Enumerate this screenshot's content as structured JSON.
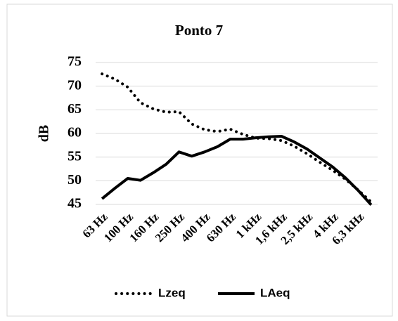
{
  "chart_data": {
    "type": "line",
    "title": "Ponto 7",
    "y_label": "dB",
    "categories": [
      "63 Hz",
      null,
      "100 Hz",
      null,
      "160 Hz",
      null,
      "250 Hz",
      null,
      "400 Hz",
      null,
      "630 Hz",
      null,
      "1 kHz",
      null,
      "1,6 kHz",
      null,
      "2,5 kHz",
      null,
      "4 kHz",
      null,
      "6,3 kHz",
      null
    ],
    "series": [
      {
        "name": "Lzeq",
        "color": "#000000",
        "line_style": "dotted",
        "values": [
          72.6,
          71.5,
          69.8,
          66.5,
          65.2,
          64.5,
          64.6,
          62.0,
          60.8,
          60.4,
          60.9,
          59.8,
          59.0,
          58.9,
          58.5,
          57.3,
          55.7,
          53.9,
          52.2,
          50.3,
          48.0,
          45.5
        ]
      },
      {
        "name": "LAeq",
        "color": "#000000",
        "line_style": "solid",
        "values": [
          46.2,
          48.4,
          50.5,
          50.1,
          51.7,
          53.5,
          56.1,
          55.2,
          56.1,
          57.2,
          58.8,
          58.8,
          59.1,
          59.3,
          59.4,
          58.2,
          56.7,
          54.8,
          52.9,
          50.6,
          47.9,
          44.9
        ]
      }
    ],
    "ylim": [
      45,
      75
    ],
    "yticks": [
      45,
      50,
      55,
      60,
      65,
      70,
      75
    ],
    "grid": true,
    "legend": "bottom"
  }
}
